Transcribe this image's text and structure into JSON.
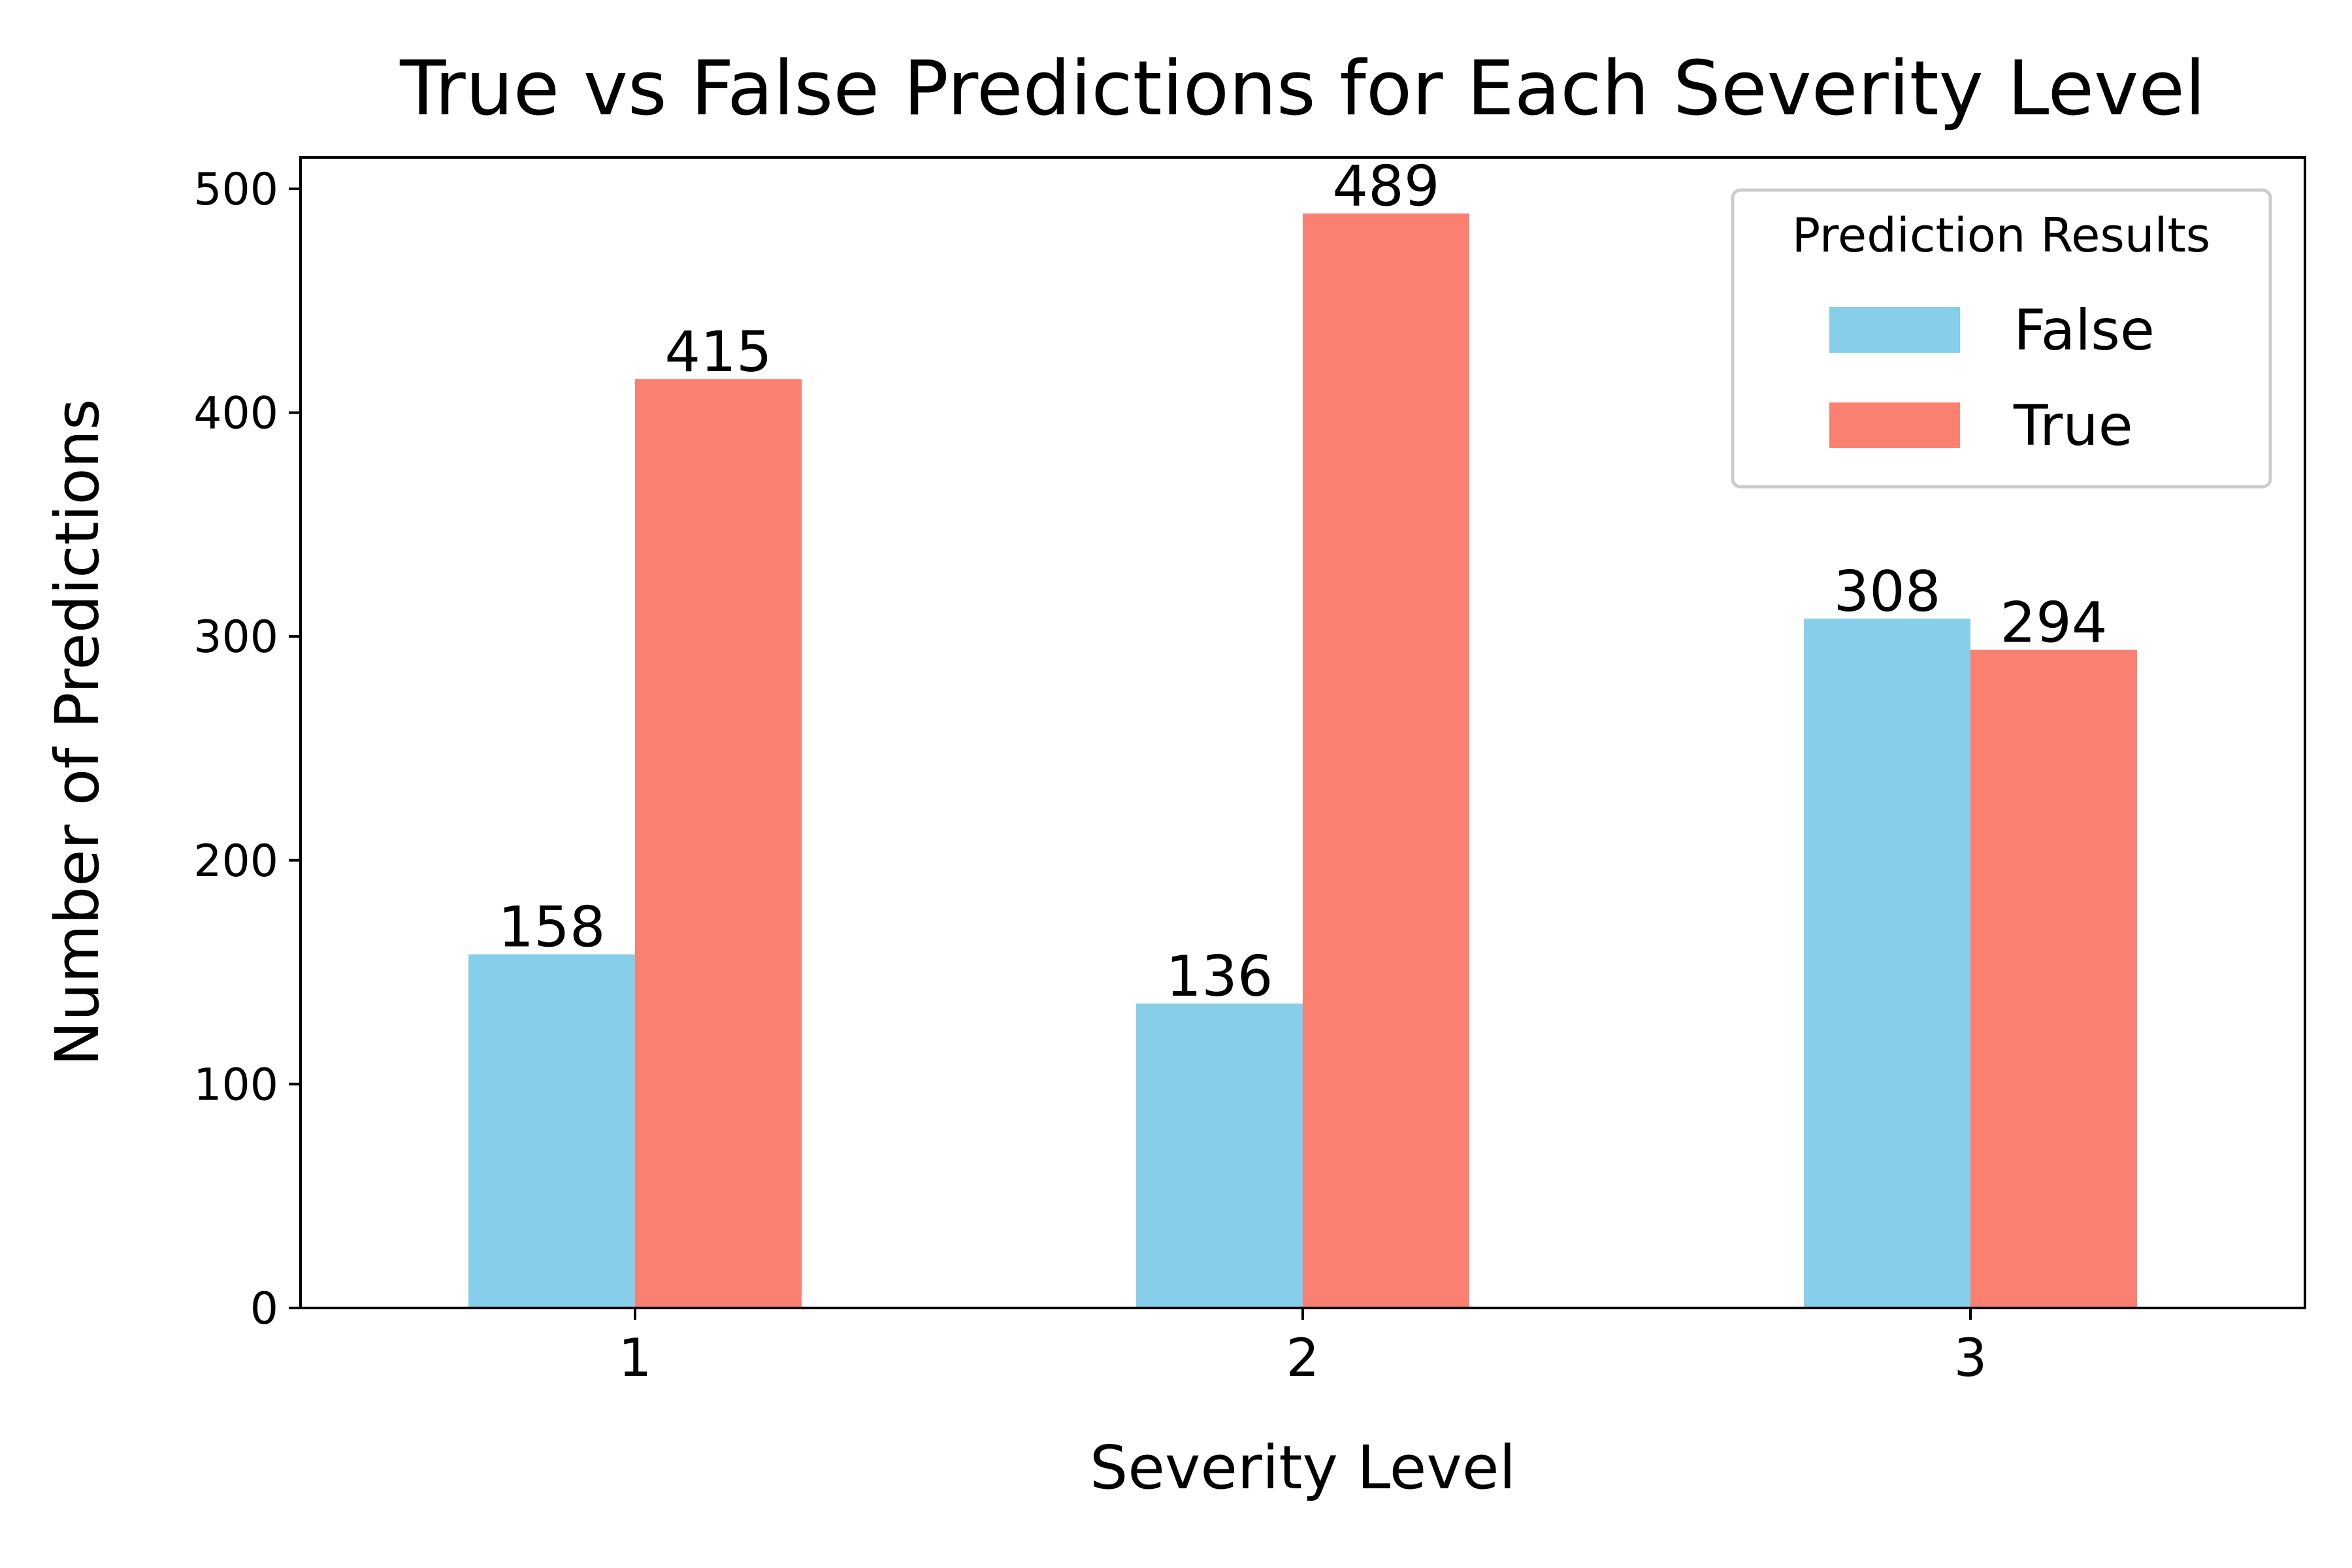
{
  "chart_data": {
    "type": "bar",
    "title": "True vs False Predictions for Each Severity Level",
    "xlabel": "Severity Level",
    "ylabel": "Number of Predictions",
    "categories": [
      "1",
      "2",
      "3"
    ],
    "series": [
      {
        "name": "False",
        "values": [
          158,
          136,
          308
        ],
        "color": "#87CEEB"
      },
      {
        "name": "True",
        "values": [
          415,
          489,
          294
        ],
        "color": "#FA8072"
      }
    ],
    "yticks": [
      "0",
      "100",
      "200",
      "300",
      "400",
      "500"
    ],
    "ylim": [
      0,
      514
    ],
    "grid": false,
    "legend": {
      "title": "Prediction Results",
      "placement": "top-right"
    }
  }
}
